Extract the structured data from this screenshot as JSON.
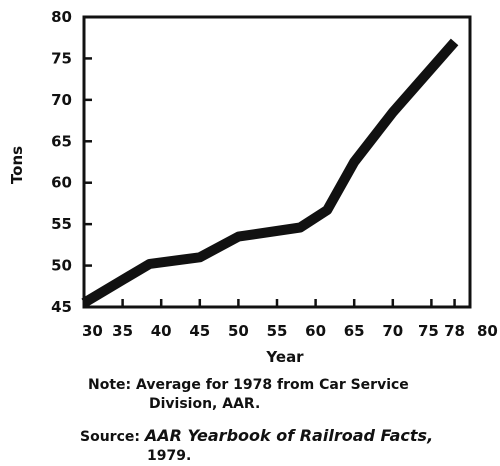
{
  "chart_data": {
    "type": "line",
    "title": "",
    "xlabel": "Year",
    "ylabel": "Tons",
    "xlim": [
      30,
      80
    ],
    "ylim": [
      45,
      80
    ],
    "x_ticks": [
      "30",
      "35",
      "40",
      "45",
      "50",
      "55",
      "60",
      "65",
      "70",
      "75",
      "78",
      "80"
    ],
    "x_tick_values": [
      30,
      35,
      40,
      45,
      50,
      55,
      60,
      65,
      70,
      75,
      78,
      80
    ],
    "y_ticks": [
      "45",
      "50",
      "55",
      "60",
      "65",
      "70",
      "75",
      "80"
    ],
    "y_tick_values": [
      45,
      50,
      55,
      60,
      65,
      70,
      75,
      80
    ],
    "grid": false,
    "series": [
      {
        "name": "",
        "x": [
          30,
          38.5,
          45,
          50,
          58,
          61.5,
          65,
          70,
          78
        ],
        "y": [
          45.5,
          50.2,
          51,
          53.5,
          54.6,
          56.7,
          62.5,
          68.5,
          77
        ]
      }
    ],
    "color": "#111111"
  },
  "notes": {
    "note_label": "Note:",
    "note_line1": "Average for 1978 from Car Service",
    "note_line2": "Division, AAR.",
    "source_label": "Source:",
    "source_title": "AAR Yearbook of Railroad Facts,",
    "source_line2": "1979."
  }
}
